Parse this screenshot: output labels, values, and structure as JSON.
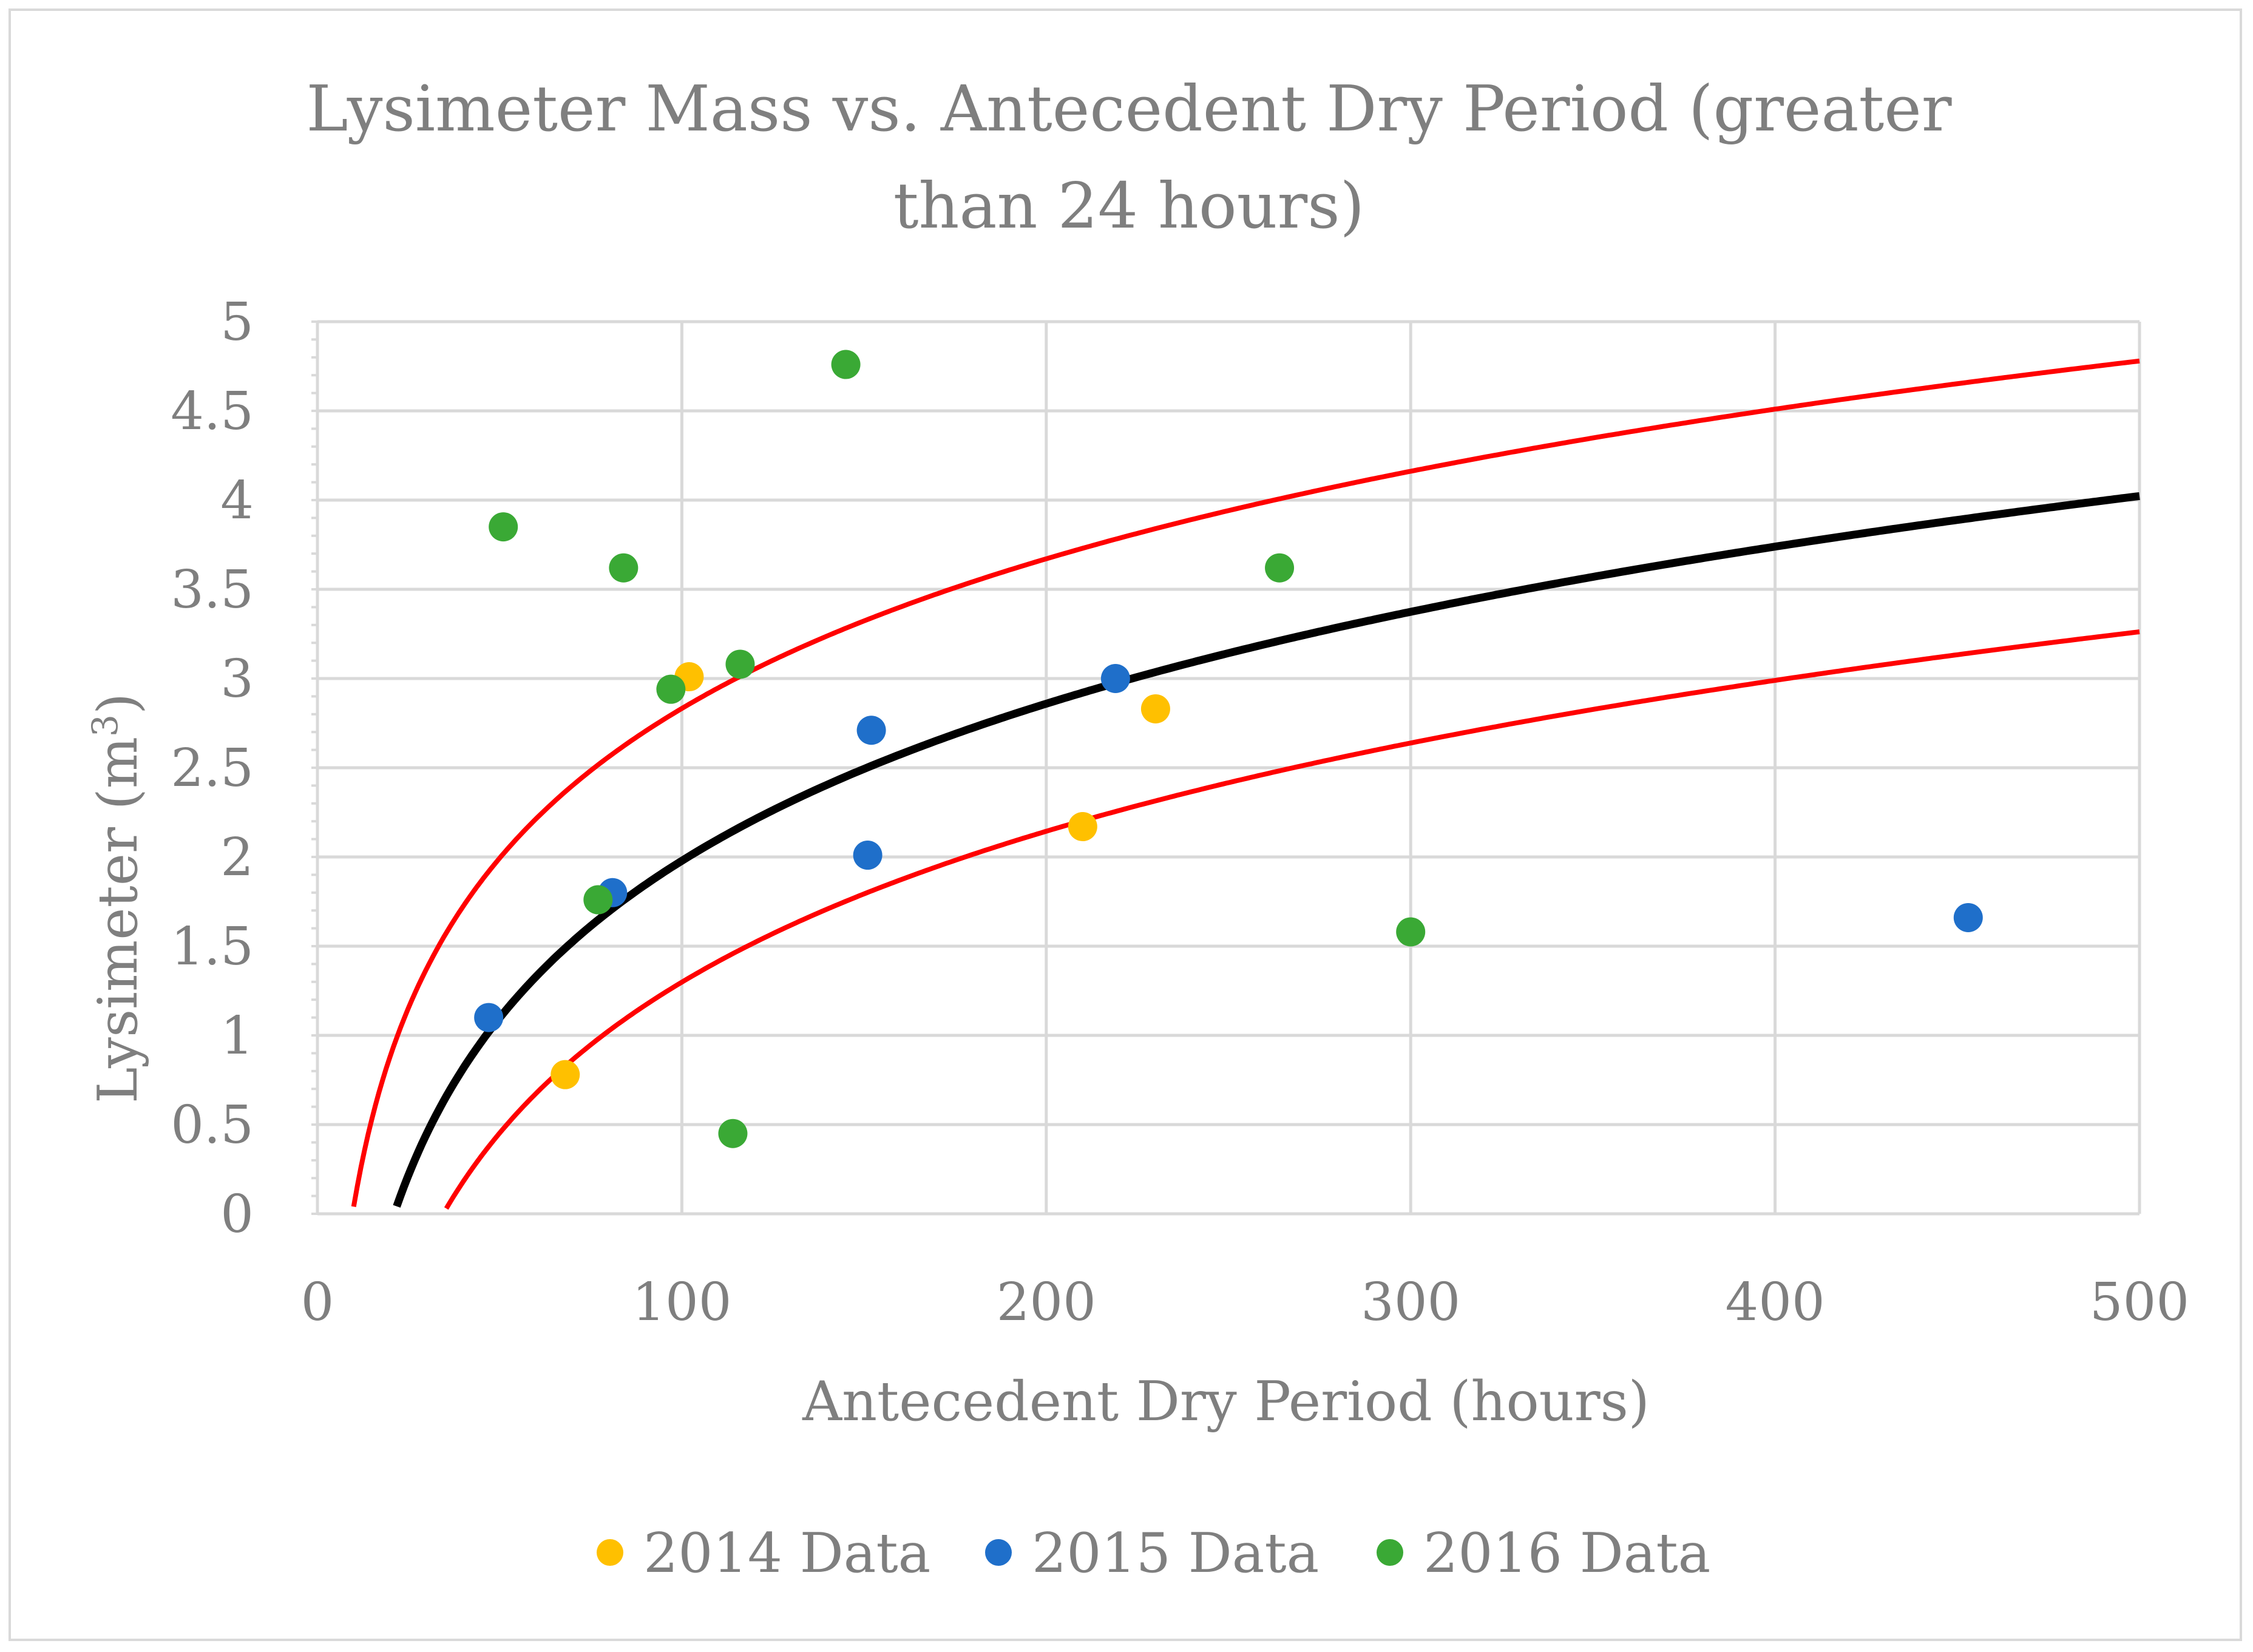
{
  "chart_data": {
    "type": "scatter",
    "title_lines": [
      "Lysimeter Mass vs. Antecedent Dry Period (greater",
      "than 24 hours)"
    ],
    "xlabel": "Antecedent Dry Period (hours)",
    "ylabel_main": "Lysimeter (m",
    "ylabel_sup": "3",
    "ylabel_end": ")",
    "xlim": [
      0,
      500
    ],
    "ylim": [
      0,
      5
    ],
    "x_ticks": [
      0,
      100,
      200,
      300,
      400,
      500
    ],
    "x_tick_labels": [
      "0",
      "100",
      "200",
      "300",
      "400",
      "500"
    ],
    "y_ticks": [
      0,
      0.5,
      1,
      1.5,
      2,
      2.5,
      3,
      3.5,
      4,
      4.5,
      5
    ],
    "y_tick_labels": [
      "0",
      "0.5",
      "1",
      "1.5",
      "2",
      "2.5",
      "3",
      "3.5",
      "4",
      "4.5",
      "5"
    ],
    "grid": true,
    "legend_position": "bottom",
    "series": [
      {
        "name": "2014 Data",
        "color": "#ffc000",
        "points": [
          [
            68,
            0.78
          ],
          [
            102,
            3.01
          ],
          [
            210,
            2.17
          ],
          [
            230,
            2.83
          ]
        ]
      },
      {
        "name": "2015 Data",
        "color": "#1f6fca",
        "points": [
          [
            47,
            1.1
          ],
          [
            81,
            1.8
          ],
          [
            151,
            2.01
          ],
          [
            152,
            2.71
          ],
          [
            219,
            3.0
          ],
          [
            453,
            1.66
          ]
        ]
      },
      {
        "name": "2016 Data",
        "color": "#3aa935",
        "points": [
          [
            51,
            3.85
          ],
          [
            84,
            3.62
          ],
          [
            77,
            1.76
          ],
          [
            97,
            2.94
          ],
          [
            116,
            3.08
          ],
          [
            114,
            0.45
          ],
          [
            145,
            4.76
          ],
          [
            264,
            3.62
          ],
          [
            300,
            1.58
          ]
        ]
      }
    ],
    "curves": [
      {
        "name": "upper-bound",
        "color": "#ff0000",
        "a": 1.21,
        "b": -2.74,
        "x_start": 5
      },
      {
        "name": "fit",
        "color": "#000000",
        "a": 1.27,
        "b": -3.87,
        "x_start": 10
      },
      {
        "name": "lower-bound",
        "color": "#ff0000",
        "a": 1.22,
        "b": -4.32,
        "x_start": 20
      }
    ]
  }
}
